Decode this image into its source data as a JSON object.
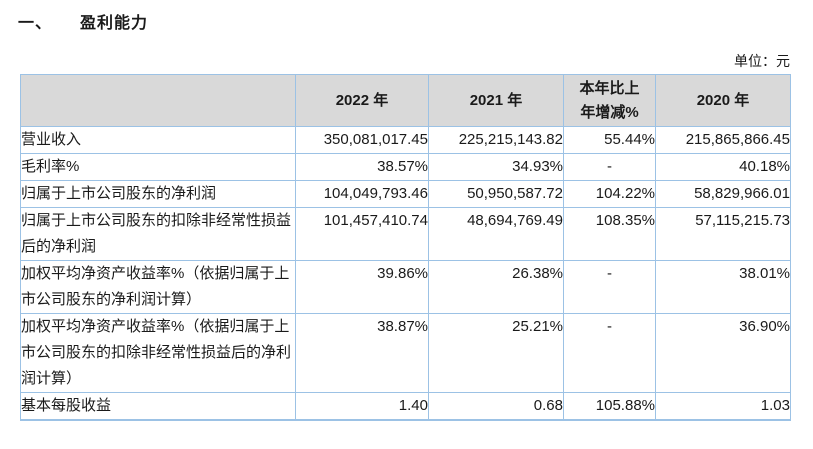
{
  "header": {
    "section_number": "一、",
    "section_title": "盈利能力",
    "unit_label": "单位：元"
  },
  "colors": {
    "table_border": "#9cc2e5",
    "header_background": "#d9d9d9",
    "text": "#1a1a1a"
  },
  "table": {
    "columns": [
      "",
      "2022 年",
      "2021 年",
      "本年比上年增减%",
      "2020 年"
    ],
    "rows": [
      {
        "label": "营业收入",
        "values": [
          "350,081,017.45",
          "225,215,143.82",
          "55.44%",
          "215,865,866.45"
        ]
      },
      {
        "label": "毛利率%",
        "values": [
          "38.57%",
          "34.93%",
          "-",
          "40.18%"
        ]
      },
      {
        "label": "归属于上市公司股东的净利润",
        "values": [
          "104,049,793.46",
          "50,950,587.72",
          "104.22%",
          "58,829,966.01"
        ]
      },
      {
        "label": "归属于上市公司股东的扣除非经常性损益后的净利润",
        "values": [
          "101,457,410.74",
          "48,694,769.49",
          "108.35%",
          "57,115,215.73"
        ]
      },
      {
        "label": "加权平均净资产收益率%（依据归属于上市公司股东的净利润计算）",
        "values": [
          "39.86%",
          "26.38%",
          "-",
          "38.01%"
        ]
      },
      {
        "label": "加权平均净资产收益率%（依据归属于上市公司股东的扣除非经常性损益后的净利润计算）",
        "values": [
          "38.87%",
          "25.21%",
          "-",
          "36.90%"
        ]
      },
      {
        "label": "基本每股收益",
        "values": [
          "1.40",
          "0.68",
          "105.88%",
          "1.03"
        ]
      }
    ]
  }
}
